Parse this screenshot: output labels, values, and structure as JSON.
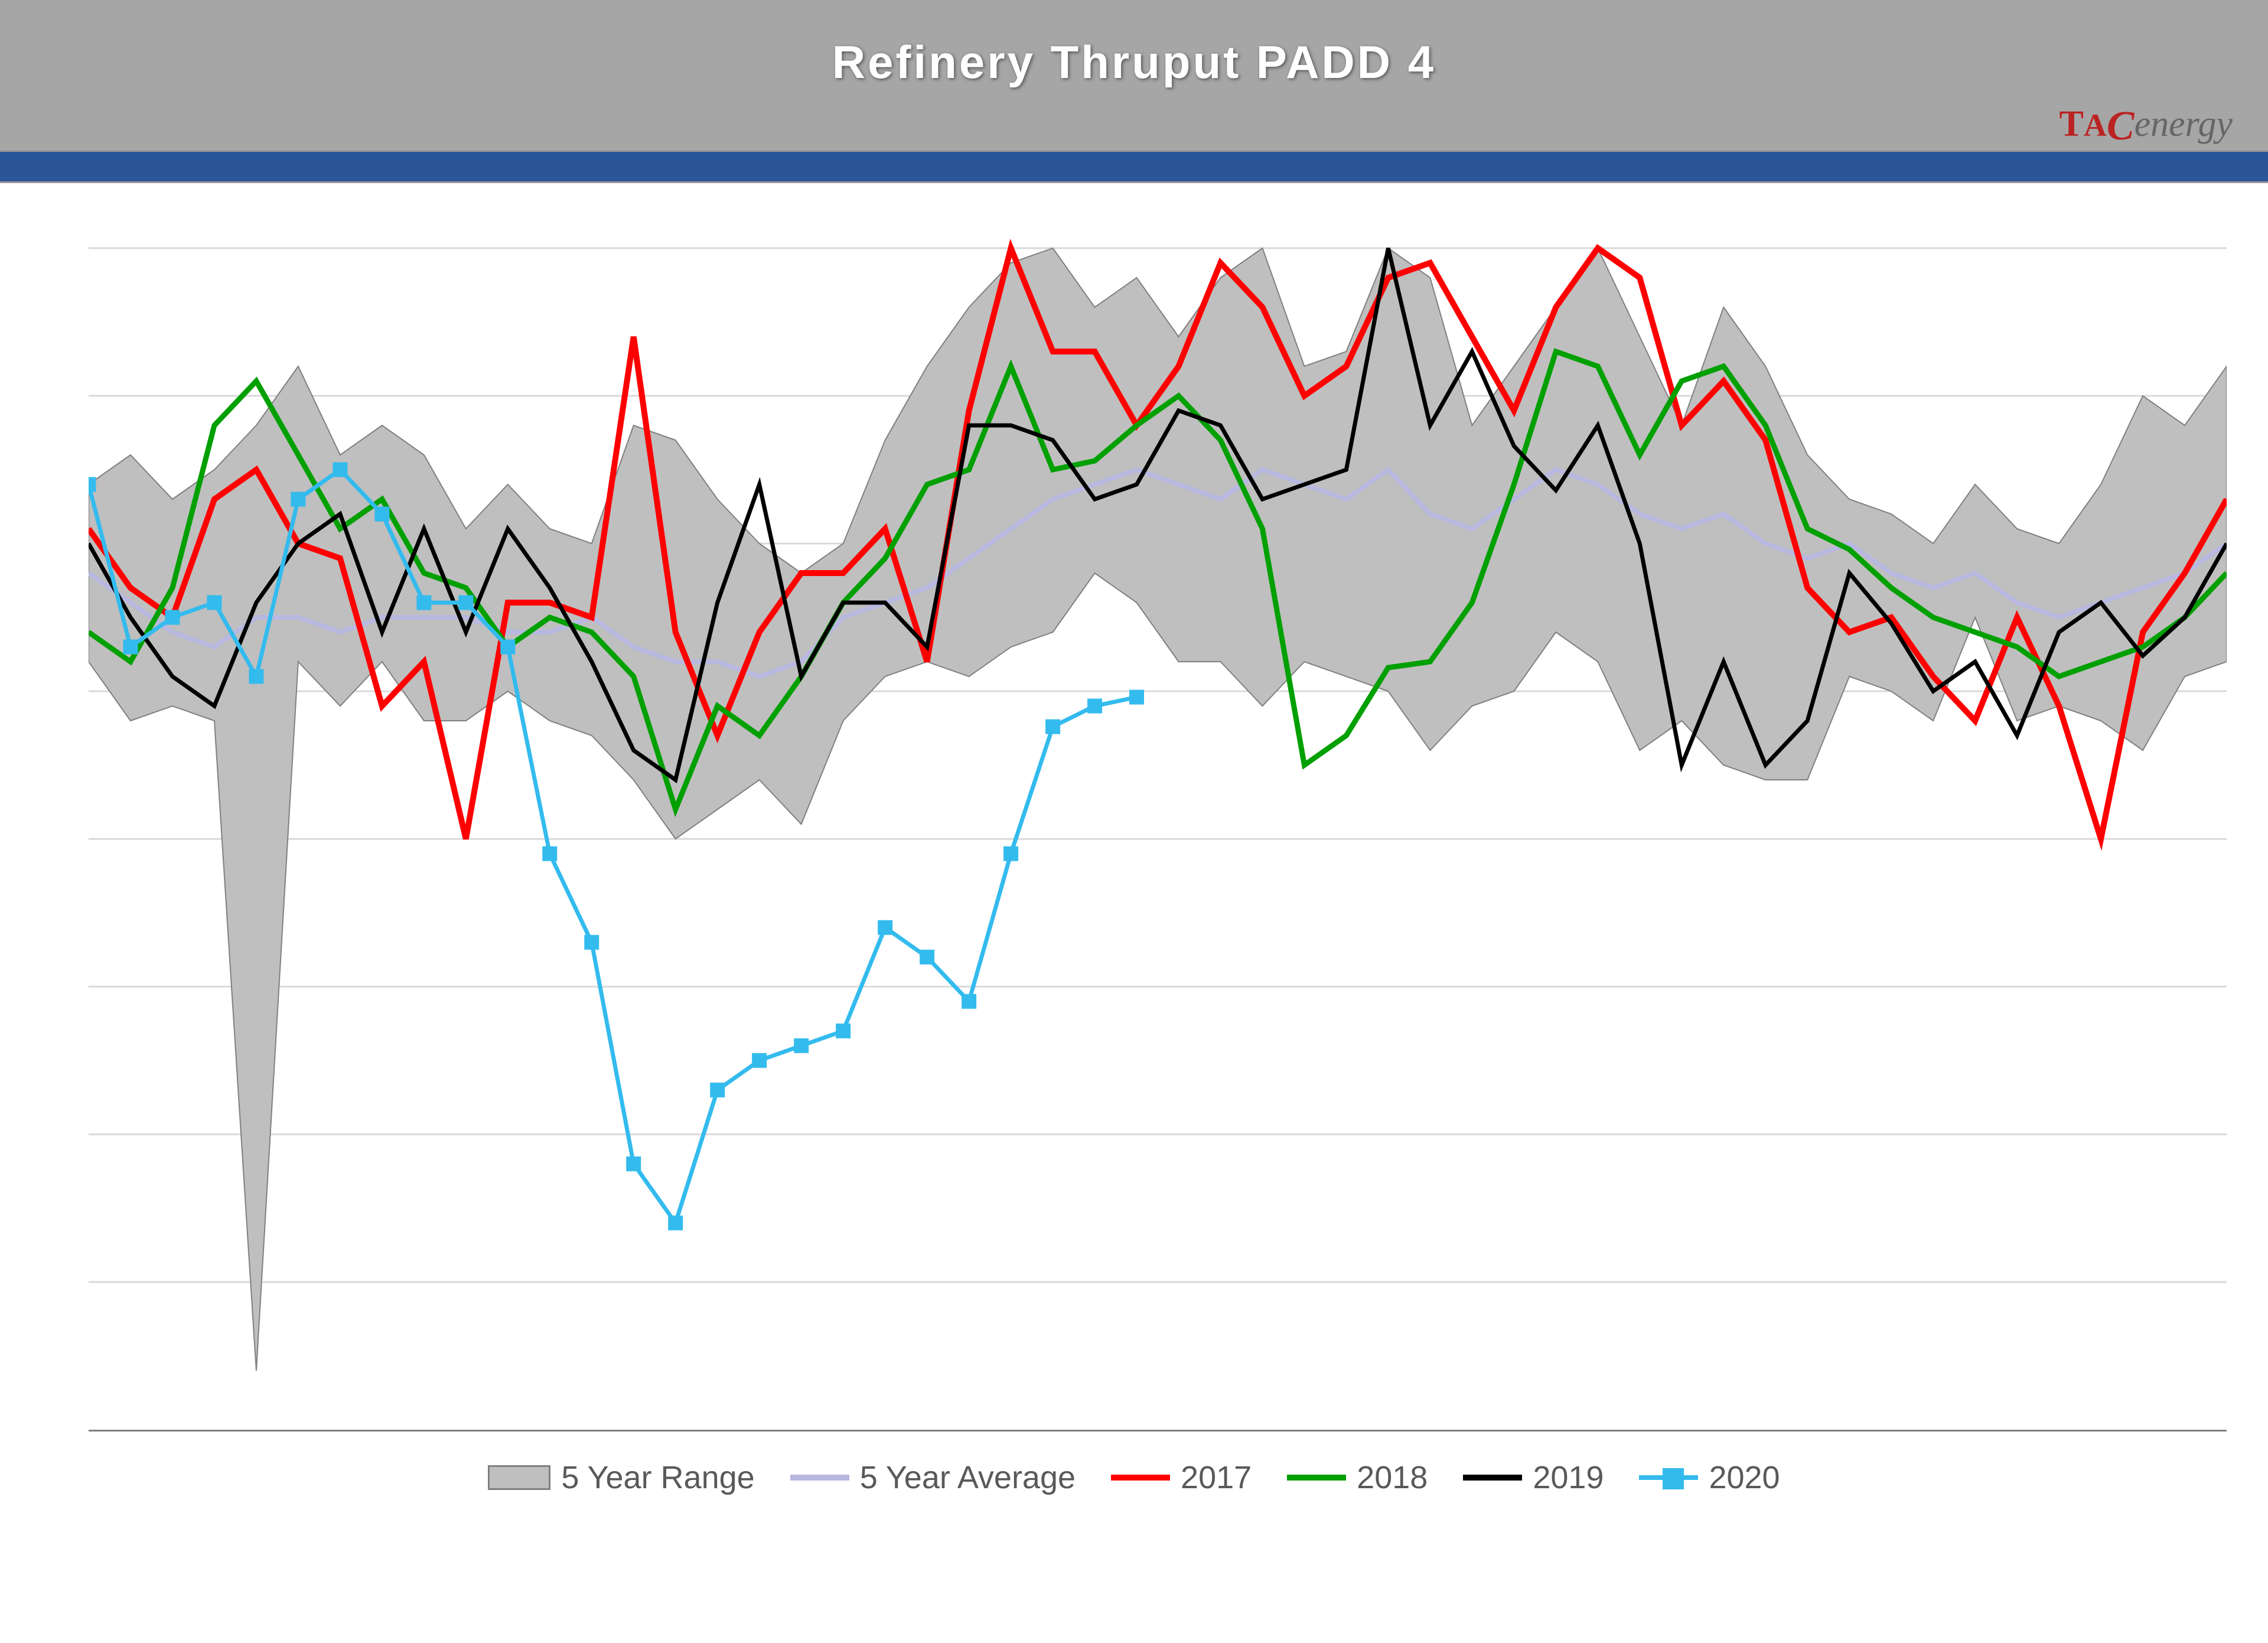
{
  "title": "Refinery Thruput PADD 4",
  "logo": {
    "t": "T",
    "a": "A",
    "c": "C",
    "rest": "energy"
  },
  "chart": {
    "type": "line-with-range",
    "x_count": 52,
    "ylim": [
      300,
      720
    ],
    "grid_y": [
      350,
      400,
      450,
      500,
      550,
      600,
      650,
      700
    ],
    "background_color": "#ffffff",
    "grid_color": "#d9d9d9",
    "header_bg": "#a6a6a6",
    "bluebar": "#2a5599",
    "range": {
      "label": "5 Year Range",
      "fill": "#bfbfbf",
      "stroke": "#808080",
      "high": [
        620,
        630,
        615,
        625,
        640,
        660,
        630,
        640,
        630,
        605,
        620,
        605,
        600,
        640,
        635,
        615,
        600,
        590,
        600,
        635,
        660,
        680,
        695,
        700,
        680,
        690,
        670,
        690,
        700,
        660,
        665,
        700,
        690,
        640,
        660,
        680,
        700,
        670,
        640,
        680,
        660,
        630,
        615,
        610,
        600,
        620,
        605,
        600,
        620,
        650,
        640,
        660
      ],
      "low": [
        560,
        540,
        545,
        540,
        320,
        560,
        545,
        560,
        540,
        540,
        550,
        540,
        535,
        520,
        500,
        510,
        520,
        505,
        540,
        555,
        560,
        555,
        565,
        570,
        590,
        580,
        560,
        560,
        545,
        560,
        555,
        550,
        530,
        545,
        550,
        570,
        560,
        530,
        540,
        525,
        520,
        520,
        555,
        550,
        540,
        575,
        540,
        545,
        540,
        530,
        555,
        560
      ]
    },
    "avg": {
      "label": "5 Year Average",
      "color": "#b8b8e0",
      "width": 8,
      "data": [
        590,
        580,
        570,
        565,
        575,
        575,
        570,
        575,
        575,
        575,
        570,
        570,
        575,
        565,
        560,
        560,
        555,
        560,
        575,
        580,
        585,
        595,
        605,
        615,
        620,
        625,
        620,
        615,
        625,
        620,
        615,
        625,
        610,
        605,
        615,
        625,
        620,
        610,
        605,
        610,
        600,
        595,
        600,
        590,
        585,
        590,
        580,
        575,
        580,
        585,
        590,
        600
      ]
    },
    "series": [
      {
        "label": "2017",
        "color": "#ff0000",
        "width": 10,
        "data": [
          605,
          585,
          575,
          615,
          625,
          600,
          595,
          545,
          560,
          500,
          580,
          580,
          575,
          670,
          570,
          535,
          570,
          590,
          590,
          605,
          560,
          645,
          700,
          665,
          665,
          640,
          660,
          695,
          680,
          650,
          660,
          690,
          695,
          670,
          645,
          680,
          700,
          690,
          640,
          655,
          635,
          585,
          570,
          575,
          555,
          540,
          575,
          545,
          500,
          570,
          590,
          615
        ]
      },
      {
        "label": "2018",
        "color": "#00a000",
        "width": 9,
        "data": [
          570,
          560,
          585,
          640,
          655,
          630,
          605,
          615,
          590,
          585,
          565,
          575,
          570,
          555,
          510,
          545,
          535,
          555,
          580,
          595,
          620,
          625,
          660,
          625,
          628,
          640,
          650,
          635,
          605,
          525,
          535,
          558,
          560,
          580,
          620,
          665,
          660,
          630,
          655,
          660,
          640,
          605,
          598,
          585,
          575,
          570,
          565,
          555,
          560,
          565,
          575,
          590
        ]
      },
      {
        "label": "2019",
        "color": "#000000",
        "width": 7,
        "data": [
          600,
          575,
          555,
          545,
          580,
          600,
          610,
          570,
          605,
          570,
          605,
          585,
          560,
          530,
          520,
          580,
          620,
          555,
          580,
          580,
          565,
          640,
          640,
          635,
          615,
          620,
          645,
          640,
          615,
          620,
          625,
          700,
          640,
          665,
          633,
          618,
          640,
          600,
          525,
          560,
          525,
          540,
          590,
          573,
          550,
          560,
          535,
          570,
          580,
          562,
          575,
          600
        ]
      }
    ],
    "series_marker": {
      "label": "2020",
      "color": "#33bbee",
      "width": 7,
      "marker_size": 22,
      "data": [
        620,
        565,
        575,
        580,
        555,
        615,
        625,
        610,
        580,
        580,
        565,
        495,
        465,
        390,
        370,
        415,
        425,
        430,
        435,
        470,
        460,
        445,
        495,
        538,
        545,
        548
      ]
    }
  },
  "legend_labels": {
    "range": "5 Year Range",
    "avg": "5 Year Average",
    "s2017": "2017",
    "s2018": "2018",
    "s2019": "2019",
    "s2020": "2020"
  }
}
